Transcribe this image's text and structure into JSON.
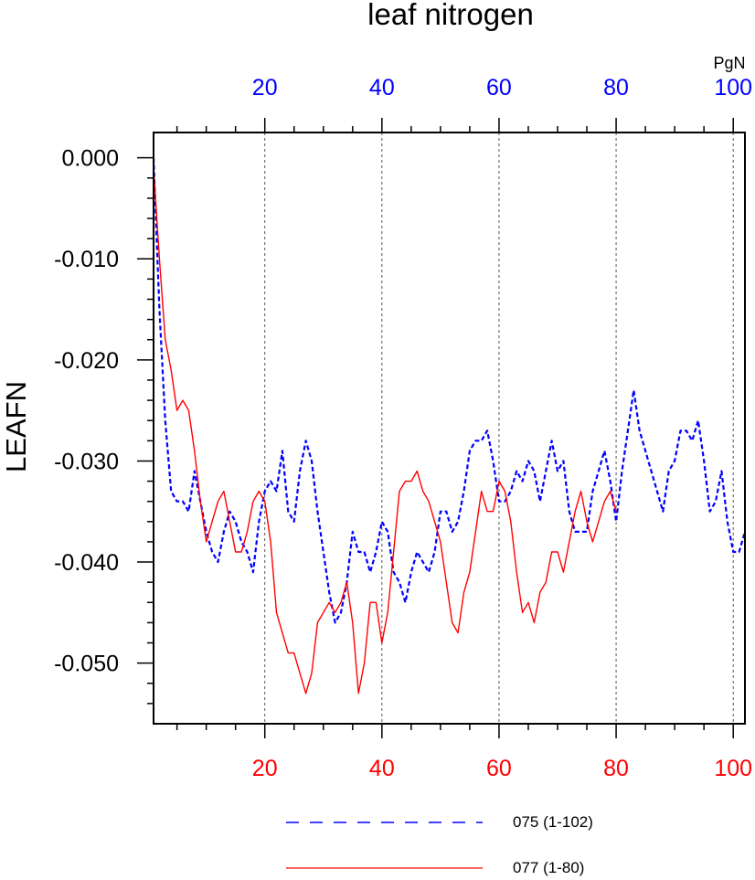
{
  "chart_data": {
    "type": "line",
    "title": "leaf nitrogen",
    "ylabel": "LEAFN",
    "top_axis_unit": "PgN",
    "xlim": [
      1,
      102
    ],
    "ylim": [
      -0.056,
      0.0025
    ],
    "yticks": [
      0.0,
      -0.01,
      -0.02,
      -0.03,
      -0.04,
      -0.05
    ],
    "ytick_labels": [
      "0.000",
      "-0.010",
      "-0.020",
      "-0.030",
      "-0.040",
      "-0.050"
    ],
    "xticks": [
      20,
      40,
      60,
      80,
      100
    ],
    "xtick_labels": [
      "20",
      "40",
      "60",
      "80",
      "100"
    ],
    "grid": "vertical-dashed",
    "legend_position": "bottom",
    "top_axis_color": "#0000ff",
    "bottom_axis_color": "#ff0000",
    "series": [
      {
        "name": "075 (1-102)",
        "color": "#0000ff",
        "dash": "dashed",
        "x": [
          1,
          2,
          3,
          4,
          5,
          6,
          7,
          8,
          9,
          10,
          11,
          12,
          13,
          14,
          15,
          16,
          17,
          18,
          19,
          20,
          21,
          22,
          23,
          24,
          25,
          26,
          27,
          28,
          29,
          30,
          31,
          32,
          33,
          34,
          35,
          36,
          37,
          38,
          39,
          40,
          41,
          42,
          43,
          44,
          45,
          46,
          47,
          48,
          49,
          50,
          51,
          52,
          53,
          54,
          55,
          56,
          57,
          58,
          59,
          60,
          61,
          62,
          63,
          64,
          65,
          66,
          67,
          68,
          69,
          70,
          71,
          72,
          73,
          74,
          75,
          76,
          77,
          78,
          79,
          80,
          81,
          82,
          83,
          84,
          85,
          86,
          87,
          88,
          89,
          90,
          91,
          92,
          93,
          94,
          95,
          96,
          97,
          98,
          99,
          100,
          101,
          102
        ],
        "y": [
          0.0,
          -0.015,
          -0.026,
          -0.033,
          -0.034,
          -0.034,
          -0.035,
          -0.031,
          -0.034,
          -0.037,
          -0.039,
          -0.04,
          -0.037,
          -0.035,
          -0.036,
          -0.038,
          -0.039,
          -0.041,
          -0.036,
          -0.033,
          -0.032,
          -0.033,
          -0.029,
          -0.035,
          -0.036,
          -0.031,
          -0.028,
          -0.03,
          -0.035,
          -0.039,
          -0.043,
          -0.046,
          -0.045,
          -0.042,
          -0.037,
          -0.039,
          -0.039,
          -0.041,
          -0.039,
          -0.036,
          -0.037,
          -0.041,
          -0.042,
          -0.044,
          -0.041,
          -0.039,
          -0.04,
          -0.041,
          -0.039,
          -0.035,
          -0.035,
          -0.037,
          -0.036,
          -0.033,
          -0.029,
          -0.028,
          -0.028,
          -0.027,
          -0.03,
          -0.034,
          -0.034,
          -0.033,
          -0.031,
          -0.032,
          -0.03,
          -0.031,
          -0.034,
          -0.031,
          -0.028,
          -0.031,
          -0.03,
          -0.035,
          -0.037,
          -0.037,
          -0.037,
          -0.033,
          -0.031,
          -0.029,
          -0.032,
          -0.036,
          -0.031,
          -0.027,
          -0.023,
          -0.027,
          -0.029,
          -0.031,
          -0.033,
          -0.035,
          -0.031,
          -0.03,
          -0.027,
          -0.027,
          -0.028,
          -0.026,
          -0.03,
          -0.035,
          -0.034,
          -0.031,
          -0.036,
          -0.039,
          -0.039,
          -0.037
        ]
      },
      {
        "name": "077 (1-80)",
        "color": "#ff0000",
        "dash": "solid",
        "x": [
          1,
          2,
          3,
          4,
          5,
          6,
          7,
          8,
          9,
          10,
          11,
          12,
          13,
          14,
          15,
          16,
          17,
          18,
          19,
          20,
          21,
          22,
          23,
          24,
          25,
          26,
          27,
          28,
          29,
          30,
          31,
          32,
          33,
          34,
          35,
          36,
          37,
          38,
          39,
          40,
          41,
          42,
          43,
          44,
          45,
          46,
          47,
          48,
          49,
          50,
          51,
          52,
          53,
          54,
          55,
          56,
          57,
          58,
          59,
          60,
          61,
          62,
          63,
          64,
          65,
          66,
          67,
          68,
          69,
          70,
          71,
          72,
          73,
          74,
          75,
          76,
          77,
          78,
          79,
          80
        ],
        "y": [
          -0.001,
          -0.01,
          -0.018,
          -0.021,
          -0.025,
          -0.024,
          -0.025,
          -0.029,
          -0.034,
          -0.038,
          -0.036,
          -0.034,
          -0.033,
          -0.036,
          -0.039,
          -0.039,
          -0.037,
          -0.034,
          -0.033,
          -0.034,
          -0.038,
          -0.045,
          -0.047,
          -0.049,
          -0.049,
          -0.051,
          -0.053,
          -0.051,
          -0.046,
          -0.045,
          -0.044,
          -0.045,
          -0.044,
          -0.042,
          -0.046,
          -0.053,
          -0.05,
          -0.044,
          -0.044,
          -0.048,
          -0.045,
          -0.039,
          -0.033,
          -0.032,
          -0.032,
          -0.031,
          -0.033,
          -0.034,
          -0.036,
          -0.038,
          -0.042,
          -0.046,
          -0.047,
          -0.043,
          -0.041,
          -0.037,
          -0.033,
          -0.035,
          -0.035,
          -0.032,
          -0.033,
          -0.036,
          -0.041,
          -0.045,
          -0.044,
          -0.046,
          -0.043,
          -0.042,
          -0.039,
          -0.039,
          -0.041,
          -0.038,
          -0.035,
          -0.033,
          -0.036,
          -0.038,
          -0.036,
          -0.034,
          -0.033,
          -0.035
        ]
      }
    ]
  }
}
